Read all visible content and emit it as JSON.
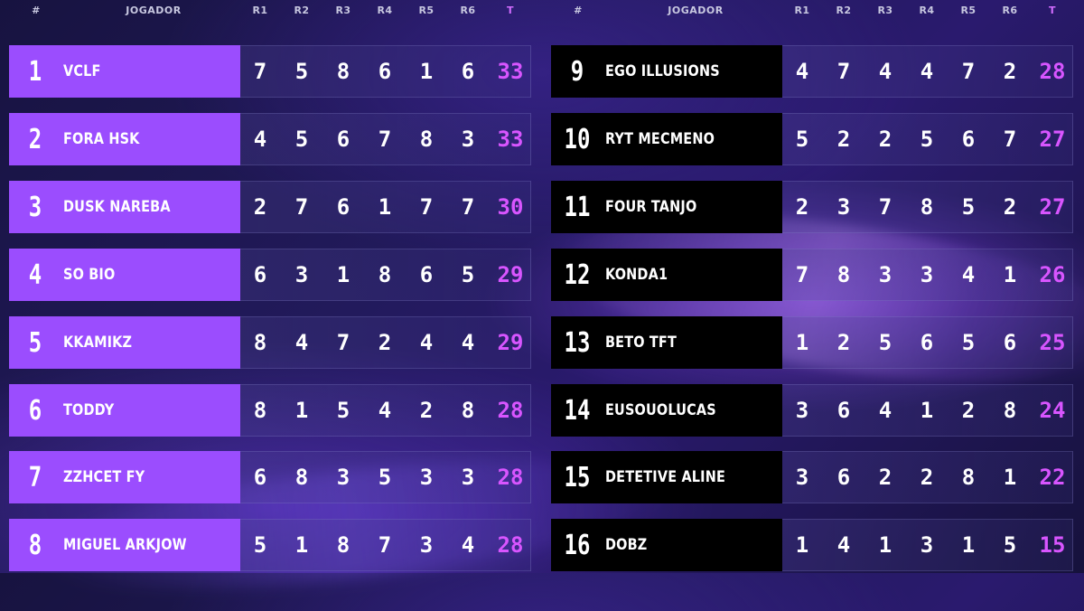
{
  "columns": {
    "rank": "#",
    "player": "JOGADOR",
    "rounds": [
      "R1",
      "R2",
      "R3",
      "R4",
      "R5",
      "R6"
    ],
    "total": "T"
  },
  "colors": {
    "left_name_bg": "#9b4dfe",
    "right_name_bg": "#000000",
    "total_text": "#d855ff"
  },
  "left": [
    {
      "rank": "1",
      "name": "VCLF",
      "scores": [
        "7",
        "5",
        "8",
        "6",
        "1",
        "6"
      ],
      "total": "33"
    },
    {
      "rank": "2",
      "name": "FORA HSK",
      "scores": [
        "4",
        "5",
        "6",
        "7",
        "8",
        "3"
      ],
      "total": "33"
    },
    {
      "rank": "3",
      "name": "DUSK NAREBA",
      "scores": [
        "2",
        "7",
        "6",
        "1",
        "7",
        "7"
      ],
      "total": "30"
    },
    {
      "rank": "4",
      "name": "SO BIO",
      "scores": [
        "6",
        "3",
        "1",
        "8",
        "6",
        "5"
      ],
      "total": "29"
    },
    {
      "rank": "5",
      "name": "KKAMIKZ",
      "scores": [
        "8",
        "4",
        "7",
        "2",
        "4",
        "4"
      ],
      "total": "29"
    },
    {
      "rank": "6",
      "name": "TODDY",
      "scores": [
        "8",
        "1",
        "5",
        "4",
        "2",
        "8"
      ],
      "total": "28"
    },
    {
      "rank": "7",
      "name": "ZZHCET FY",
      "scores": [
        "6",
        "8",
        "3",
        "5",
        "3",
        "3"
      ],
      "total": "28"
    },
    {
      "rank": "8",
      "name": "MIGUEL ARKJOW",
      "scores": [
        "5",
        "1",
        "8",
        "7",
        "3",
        "4"
      ],
      "total": "28"
    }
  ],
  "right": [
    {
      "rank": "9",
      "name": "EGO ILLUSIONS",
      "scores": [
        "4",
        "7",
        "4",
        "4",
        "7",
        "2"
      ],
      "total": "28"
    },
    {
      "rank": "10",
      "name": "RYT MECMENO",
      "scores": [
        "5",
        "2",
        "2",
        "5",
        "6",
        "7"
      ],
      "total": "27"
    },
    {
      "rank": "11",
      "name": "FOUR TANJO",
      "scores": [
        "2",
        "3",
        "7",
        "8",
        "5",
        "2"
      ],
      "total": "27"
    },
    {
      "rank": "12",
      "name": "KONDA1",
      "scores": [
        "7",
        "8",
        "3",
        "3",
        "4",
        "1"
      ],
      "total": "26"
    },
    {
      "rank": "13",
      "name": "BETO TFT",
      "scores": [
        "1",
        "2",
        "5",
        "6",
        "5",
        "6"
      ],
      "total": "25"
    },
    {
      "rank": "14",
      "name": "EUSOUOLUCAS",
      "scores": [
        "3",
        "6",
        "4",
        "1",
        "2",
        "8"
      ],
      "total": "24"
    },
    {
      "rank": "15",
      "name": "DETETIVE ALINE",
      "scores": [
        "3",
        "6",
        "2",
        "2",
        "8",
        "1"
      ],
      "total": "22"
    },
    {
      "rank": "16",
      "name": "DOBZ",
      "scores": [
        "1",
        "4",
        "1",
        "3",
        "1",
        "5"
      ],
      "total": "15"
    }
  ]
}
